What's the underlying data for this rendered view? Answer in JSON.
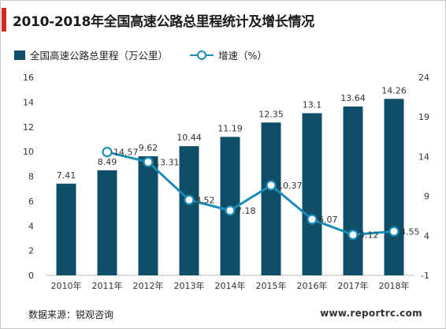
{
  "colors": {
    "bar": "#0e4f67",
    "line": "#1a8cb8",
    "accent": "#d22a20"
  },
  "header": {
    "title": "2010-2018年全国高速公路总里程统计及增长情况"
  },
  "footer": {
    "source": "数据来源：锐观咨询",
    "site": "www.reportrc.com"
  },
  "chart_data": {
    "type": "bar",
    "title": "2010-2018年全国高速公路总里程统计及增长情况",
    "categories": [
      "2010年",
      "2011年",
      "2012年",
      "2013年",
      "2014年",
      "2015年",
      "2016年",
      "2017年",
      "2018年"
    ],
    "series": [
      {
        "name": "全国高速公路总里程（万公里）",
        "type": "bar",
        "axis": "left",
        "values": [
          7.41,
          8.49,
          9.62,
          10.44,
          11.19,
          12.35,
          13.1,
          13.64,
          14.26
        ]
      },
      {
        "name": "增速（%）",
        "type": "line",
        "axis": "right",
        "values": [
          null,
          14.57,
          13.31,
          8.52,
          7.18,
          10.37,
          6.07,
          4.12,
          4.55
        ]
      }
    ],
    "bar_labels": [
      "7.41",
      "8.49",
      "9.62",
      "10.44",
      "11.19",
      "12.35",
      "13.1",
      "13.64",
      "14.26"
    ],
    "line_labels": [
      "",
      "14.57",
      "13.31",
      "8.52",
      "7.18",
      "10.37",
      "6.07",
      "4.12",
      "4.55"
    ],
    "left_axis": {
      "ylim": [
        0,
        16
      ],
      "ticks": [
        "0",
        "2",
        "4",
        "6",
        "8",
        "10",
        "12",
        "14",
        "16"
      ]
    },
    "right_axis": {
      "ylim": [
        -1,
        24
      ],
      "ticks": [
        "-1",
        "4",
        "9",
        "14",
        "19",
        "24"
      ]
    },
    "legend_position": "top-left",
    "grid": false
  }
}
